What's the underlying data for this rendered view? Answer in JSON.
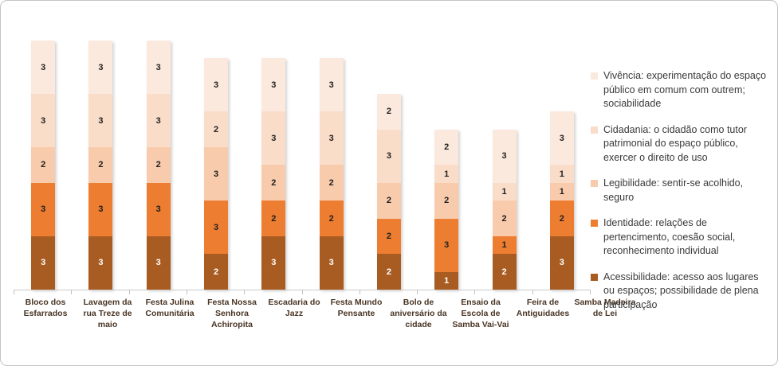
{
  "chart_data": {
    "type": "bar",
    "stacked": true,
    "orientation": "vertical",
    "title": "",
    "xlabel": "",
    "ylabel": "",
    "ylim": [
      0,
      14
    ],
    "gridlines": false,
    "y_axis_visible": false,
    "value_labels_shown": true,
    "legend_position": "right",
    "axis_color": "#c9c9c9",
    "categories": [
      "Bloco dos Esfarrados",
      "Lavagem da rua Treze de maio",
      "Festa Julina Comunitária",
      "Festa Nossa Senhora Achiropita",
      "Escadaria do Jazz",
      "Festa Mundo Pensante",
      "Bolo de aniversário da cidade",
      "Ensaio da Escola de Samba Vai-Vai",
      "Feira de Antiguidades",
      "Samba Madeira de Lei"
    ],
    "series": [
      {
        "name": "Acessibilidade: acesso aos lugares ou espaços; possibilidade de plena participação",
        "color": "#a85c21",
        "value_label_color": "#ffffff",
        "values": [
          3,
          3,
          3,
          2,
          3,
          3,
          2,
          1,
          2,
          3
        ]
      },
      {
        "name": "Identidade: relações de pertencimento, coesão social, reconhecimento individual",
        "color": "#ed7d31",
        "value_label_color": "#1f1f1f",
        "values": [
          3,
          3,
          3,
          3,
          2,
          2,
          2,
          3,
          1,
          2
        ]
      },
      {
        "name": "Legibilidade: sentir-se acolhido, seguro",
        "color": "#f8cbad",
        "value_label_color": "#1f1f1f",
        "values": [
          2,
          2,
          2,
          3,
          2,
          2,
          2,
          2,
          2,
          1
        ]
      },
      {
        "name": "Cidadania: o cidadão como tutor patrimonial do espaço público, exercer o direito de uso",
        "color": "#faddc9",
        "value_label_color": "#1f1f1f",
        "values": [
          3,
          3,
          3,
          2,
          3,
          3,
          3,
          1,
          1,
          1
        ]
      },
      {
        "name": "Vivência: experimentação do espaço público em comum com outrem; sociabilidade",
        "color": "#fce9de",
        "value_label_color": "#1f1f1f",
        "values": [
          3,
          3,
          3,
          3,
          3,
          3,
          2,
          2,
          3,
          3
        ]
      }
    ],
    "bar_totals": [
      14,
      14,
      14,
      13,
      13,
      13,
      11,
      9,
      9,
      10
    ],
    "legend_order_top_to_bottom": [
      "Vivência",
      "Cidadania",
      "Legibilidade",
      "Identidade",
      "Acessibilidade"
    ]
  }
}
